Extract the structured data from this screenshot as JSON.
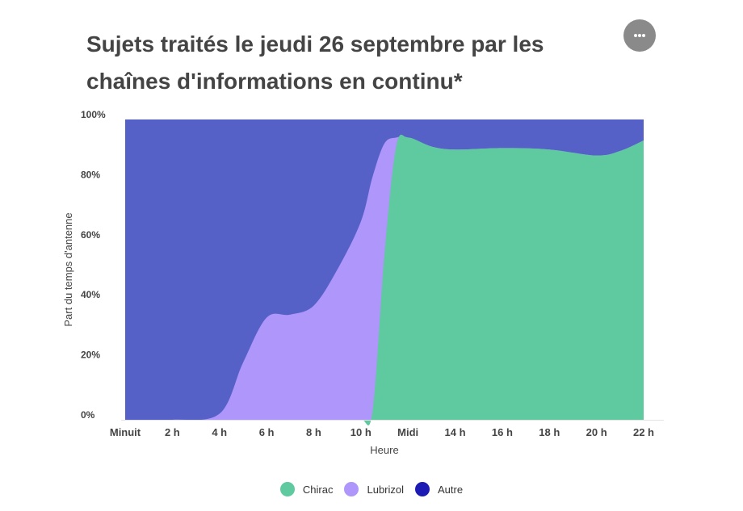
{
  "title": "Sujets traités le jeudi 26 septembre par les chaînes d'informations en continu*",
  "more_button_icon": "more-horizontal-icon",
  "chart_data": {
    "type": "area",
    "stacked": true,
    "percent": true,
    "x_tick_labels": [
      "Minuit",
      "2 h",
      "4 h",
      "6 h",
      "8 h",
      "10 h",
      "Midi",
      "14 h",
      "16 h",
      "18 h",
      "20 h",
      "22 h"
    ],
    "y_tick_labels": [
      "0%",
      "20%",
      "40%",
      "60%",
      "80%",
      "100%"
    ],
    "xlabel": "Heure",
    "ylabel": "Part du temps d'antenne",
    "xlim": [
      0,
      22
    ],
    "ylim": [
      0,
      100
    ],
    "x": [
      0,
      2,
      4,
      5,
      6,
      7,
      8,
      9,
      10,
      10.5,
      11,
      11.5,
      12,
      13,
      14,
      16,
      18,
      20,
      21,
      22
    ],
    "series": [
      {
        "name": "Chirac",
        "color": "#5fc9a0",
        "values": [
          0,
          0,
          0,
          0,
          0,
          0,
          0,
          0,
          0,
          3,
          55,
          91,
          94,
          91,
          90,
          90.5,
          90,
          88,
          89.5,
          93
        ]
      },
      {
        "name": "Lubrizol",
        "color": "#ae96fa",
        "values": [
          0,
          0,
          2,
          19,
          34,
          35,
          38,
          50,
          66,
          81,
          92,
          94,
          94,
          91,
          90,
          90.5,
          90,
          88,
          89.5,
          93
        ]
      },
      {
        "name": "Autre",
        "color": "#5661c8",
        "legend_color": "#1c1cb5",
        "values": [
          100,
          100,
          100,
          100,
          100,
          100,
          100,
          100,
          100,
          100,
          100,
          100,
          100,
          100,
          100,
          100,
          100,
          100,
          100,
          100
        ]
      }
    ],
    "values_note": "cumulative",
    "grid": false,
    "legend_position": "bottom"
  }
}
